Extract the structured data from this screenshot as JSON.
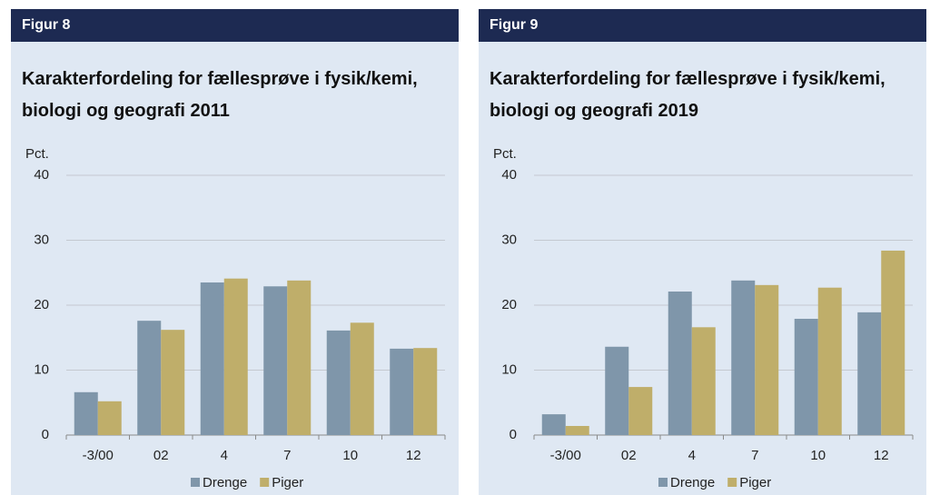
{
  "chart_data": [
    {
      "type": "bar",
      "figure_label": "Figur 8",
      "title": "Karakterfordeling for fællesprøve i fysik/kemi, biologi og geografi 2011",
      "y_label": "Pct.",
      "categories": [
        "-3/00",
        "02",
        "4",
        "7",
        "10",
        "12"
      ],
      "series": [
        {
          "name": "Drenge",
          "color": "#7f96aa",
          "values": [
            6.6,
            17.6,
            23.5,
            22.9,
            16.1,
            13.3
          ]
        },
        {
          "name": "Piger",
          "color": "#bfae6a",
          "values": [
            5.2,
            16.2,
            24.1,
            23.8,
            17.3,
            13.4
          ]
        }
      ],
      "ylim": [
        0,
        40
      ],
      "yticks": [
        0,
        10,
        20,
        30,
        40
      ],
      "grid": true,
      "legend": "bottom"
    },
    {
      "type": "bar",
      "figure_label": "Figur 9",
      "title": "Karakterfordeling for fællesprøve i fysik/kemi, biologi og geografi 2019",
      "y_label": "Pct.",
      "categories": [
        "-3/00",
        "02",
        "4",
        "7",
        "10",
        "12"
      ],
      "series": [
        {
          "name": "Drenge",
          "color": "#7f96aa",
          "values": [
            3.2,
            13.6,
            22.1,
            23.8,
            17.9,
            18.9
          ]
        },
        {
          "name": "Piger",
          "color": "#bfae6a",
          "values": [
            1.4,
            7.4,
            16.6,
            23.1,
            22.7,
            28.4
          ]
        }
      ],
      "ylim": [
        0,
        40
      ],
      "yticks": [
        0,
        10,
        20,
        30,
        40
      ],
      "grid": true,
      "legend": "bottom"
    }
  ]
}
